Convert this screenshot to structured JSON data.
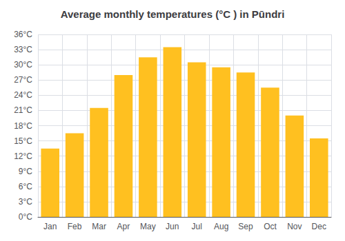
{
  "chart_data": {
    "type": "bar",
    "title": "Average monthly temperatures (°C ) in Pūndri",
    "categories": [
      "Jan",
      "Feb",
      "Mar",
      "Apr",
      "May",
      "Jun",
      "Jul",
      "Aug",
      "Sep",
      "Oct",
      "Nov",
      "Dec"
    ],
    "values": [
      13.5,
      16.5,
      21.5,
      28.0,
      31.5,
      33.5,
      30.5,
      29.5,
      28.5,
      25.5,
      20.0,
      15.5
    ],
    "color": "#FFC020",
    "ylim": [
      0,
      36
    ],
    "yticks": [
      {
        "value": 0,
        "label": "0°C"
      },
      {
        "value": 3,
        "label": "3°C"
      },
      {
        "value": 6,
        "label": "6°C"
      },
      {
        "value": 9,
        "label": "9°C"
      },
      {
        "value": 12,
        "label": "12°C"
      },
      {
        "value": 15,
        "label": "15°C"
      },
      {
        "value": 18,
        "label": "18°C"
      },
      {
        "value": 21,
        "label": "21°C"
      },
      {
        "value": 24,
        "label": "24°C"
      },
      {
        "value": 27,
        "label": "27°C"
      },
      {
        "value": 30,
        "label": "30°C"
      },
      {
        "value": 33,
        "label": "33°C"
      },
      {
        "value": 36,
        "label": "36°C"
      }
    ],
    "grid": true
  }
}
